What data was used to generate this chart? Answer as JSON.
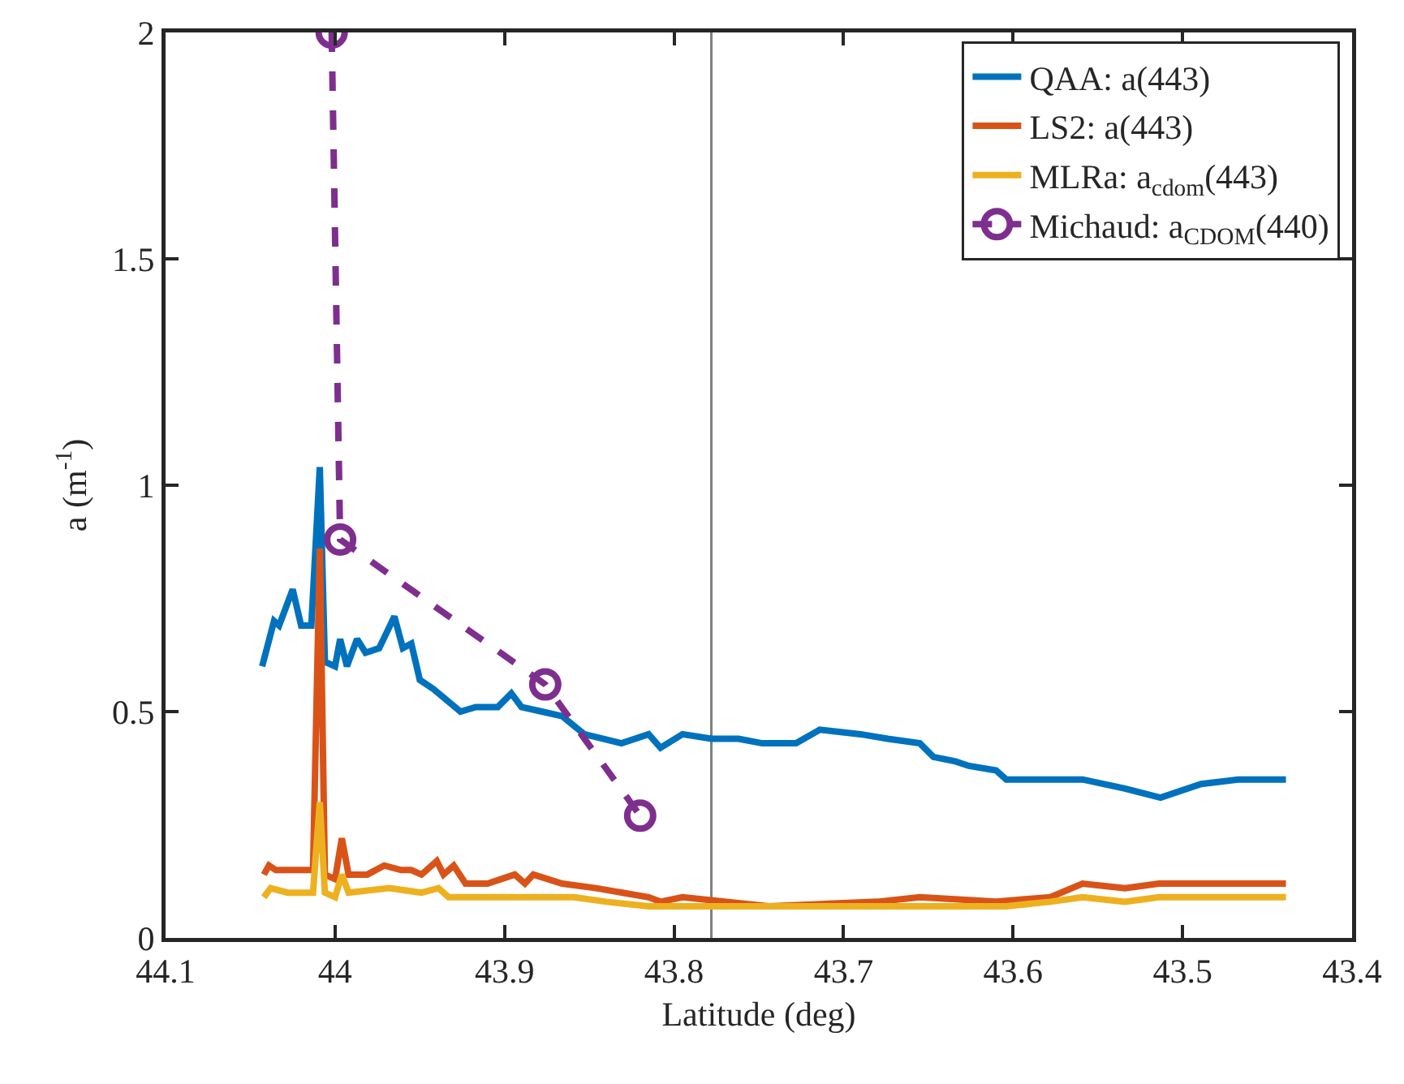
{
  "chart_data": {
    "type": "line",
    "xlabel": "Latitude (deg)",
    "ylabel": "a (m$^{-1}$)",
    "xlim": [
      44.1,
      43.4
    ],
    "xticks": [
      44.1,
      44,
      43.9,
      43.8,
      43.7,
      43.6,
      43.5,
      43.4
    ],
    "ylim": [
      0,
      2
    ],
    "yticks": [
      0,
      0.5,
      1,
      1.5,
      2
    ],
    "grid": false,
    "legend": "top right",
    "ref_lines": [
      {
        "axis": "x",
        "value": 43.778,
        "color": "#808080"
      }
    ],
    "series": [
      {
        "name": "QAA: a(443)",
        "color": "#0072bd",
        "line_style": "solid",
        "marker": "none",
        "x": [
          44.043,
          44.036,
          44.033,
          44.025,
          44.02,
          44.014,
          44.009,
          44.006,
          44.0,
          43.997,
          43.993,
          43.987,
          43.982,
          43.974,
          43.965,
          43.96,
          43.955,
          43.95,
          43.942,
          43.926,
          43.917,
          43.904,
          43.896,
          43.89,
          43.878,
          43.866,
          43.853,
          43.831,
          43.815,
          43.808,
          43.795,
          43.778,
          43.762,
          43.748,
          43.728,
          43.714,
          43.69,
          43.674,
          43.655,
          43.647,
          43.634,
          43.626,
          43.61,
          43.604,
          43.559,
          43.534,
          43.513,
          43.489,
          43.467,
          43.439
        ],
        "values": [
          0.6,
          0.7,
          0.69,
          0.77,
          0.69,
          0.69,
          1.04,
          0.61,
          0.6,
          0.66,
          0.6,
          0.66,
          0.63,
          0.64,
          0.71,
          0.64,
          0.65,
          0.57,
          0.55,
          0.5,
          0.51,
          0.51,
          0.54,
          0.51,
          0.5,
          0.49,
          0.45,
          0.43,
          0.45,
          0.42,
          0.45,
          0.44,
          0.44,
          0.43,
          0.43,
          0.46,
          0.45,
          0.44,
          0.43,
          0.4,
          0.39,
          0.38,
          0.37,
          0.35,
          0.35,
          0.33,
          0.31,
          0.34,
          0.35,
          0.35
        ]
      },
      {
        "name": "LS2: a(443)",
        "color": "#d95319",
        "line_style": "solid",
        "marker": "none",
        "x": [
          44.042,
          44.039,
          44.035,
          44.027,
          44.019,
          44.013,
          44.009,
          44.006,
          44.0,
          43.996,
          43.992,
          43.981,
          43.971,
          43.961,
          43.955,
          43.949,
          43.94,
          43.936,
          43.93,
          43.923,
          43.91,
          43.894,
          43.888,
          43.883,
          43.866,
          43.846,
          43.815,
          43.808,
          43.795,
          43.744,
          43.68,
          43.655,
          43.61,
          43.578,
          43.559,
          43.534,
          43.514,
          43.439
        ],
        "values": [
          0.14,
          0.16,
          0.15,
          0.15,
          0.15,
          0.15,
          0.86,
          0.14,
          0.13,
          0.22,
          0.14,
          0.14,
          0.16,
          0.15,
          0.15,
          0.14,
          0.17,
          0.14,
          0.16,
          0.12,
          0.12,
          0.14,
          0.12,
          0.14,
          0.12,
          0.11,
          0.09,
          0.08,
          0.09,
          0.07,
          0.08,
          0.09,
          0.08,
          0.09,
          0.12,
          0.11,
          0.12,
          0.12
        ]
      },
      {
        "name": "MLRa: a$_{cdom}$(443)",
        "color": "#edb120",
        "line_style": "solid",
        "marker": "none",
        "x": [
          44.042,
          44.038,
          44.028,
          44.013,
          44.009,
          44.006,
          44.0,
          43.996,
          43.992,
          43.968,
          43.949,
          43.939,
          43.933,
          43.91,
          43.878,
          43.859,
          43.84,
          43.815,
          43.808,
          43.744,
          43.68,
          43.604,
          43.578,
          43.559,
          43.534,
          43.514,
          43.439
        ],
        "values": [
          0.09,
          0.11,
          0.1,
          0.1,
          0.3,
          0.1,
          0.09,
          0.14,
          0.1,
          0.11,
          0.1,
          0.11,
          0.09,
          0.09,
          0.09,
          0.09,
          0.08,
          0.07,
          0.07,
          0.07,
          0.07,
          0.07,
          0.08,
          0.09,
          0.08,
          0.09,
          0.09
        ]
      },
      {
        "name": "Michaud: a$_{CDOM}$(440)",
        "color": "#7e2f8e",
        "line_style": "dashed",
        "marker": "circle",
        "x": [
          44.002,
          43.997,
          43.876,
          43.82
        ],
        "values": [
          2,
          0.88,
          0.56,
          0.27
        ]
      }
    ]
  }
}
